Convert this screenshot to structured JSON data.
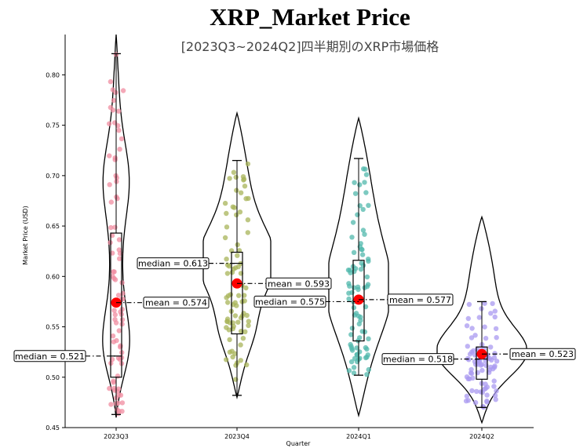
{
  "chart_data": {
    "type": "violin",
    "title": "XRP_Market Price",
    "subtitle": "[2023Q3~2024Q2]四半期別のXRP市場価格",
    "xlabel": "Quarter",
    "ylabel": "Market Price (USD)",
    "ylim": [
      0.45,
      0.84
    ],
    "yticks": [
      "0.45",
      "0.50",
      "0.55",
      "0.60",
      "0.65",
      "0.70",
      "0.75",
      "0.80"
    ],
    "grid": false,
    "categories": [
      "2023Q3",
      "2023Q4",
      "2024Q1",
      "2024Q2"
    ],
    "groups": [
      {
        "name": "2023Q3",
        "color": "#f08ca0",
        "min": 0.463,
        "q1": 0.5,
        "median": 0.521,
        "q3": 0.643,
        "max": 0.821,
        "mean": 0.574,
        "kde_range": [
          0.46,
          0.84
        ],
        "kde_peak": 0.52,
        "median_label": "median = 0.521",
        "mean_label": "mean = 0.574"
      },
      {
        "name": "2023Q4",
        "color": "#a8b45a",
        "min": 0.482,
        "q1": 0.543,
        "median": 0.613,
        "q3": 0.624,
        "max": 0.715,
        "mean": 0.593,
        "kde_range": [
          0.48,
          0.762
        ],
        "kde_peak": 0.615,
        "median_label": "median = 0.613",
        "mean_label": "mean = 0.593"
      },
      {
        "name": "2024Q1",
        "color": "#52b8ac",
        "min": 0.502,
        "q1": 0.536,
        "median": 0.575,
        "q3": 0.616,
        "max": 0.717,
        "mean": 0.577,
        "kde_range": [
          0.462,
          0.757
        ],
        "kde_peak": 0.575,
        "median_label": "median = 0.575",
        "mean_label": "mean = 0.577"
      },
      {
        "name": "2024Q2",
        "color": "#a99af0",
        "min": 0.47,
        "q1": 0.498,
        "median": 0.518,
        "q3": 0.53,
        "max": 0.575,
        "mean": 0.523,
        "kde_range": [
          0.455,
          0.659
        ],
        "kde_peak": 0.52,
        "median_label": "median = 0.518",
        "mean_label": "mean = 0.523"
      }
    ],
    "mean_marker_color": "#ff0000"
  }
}
